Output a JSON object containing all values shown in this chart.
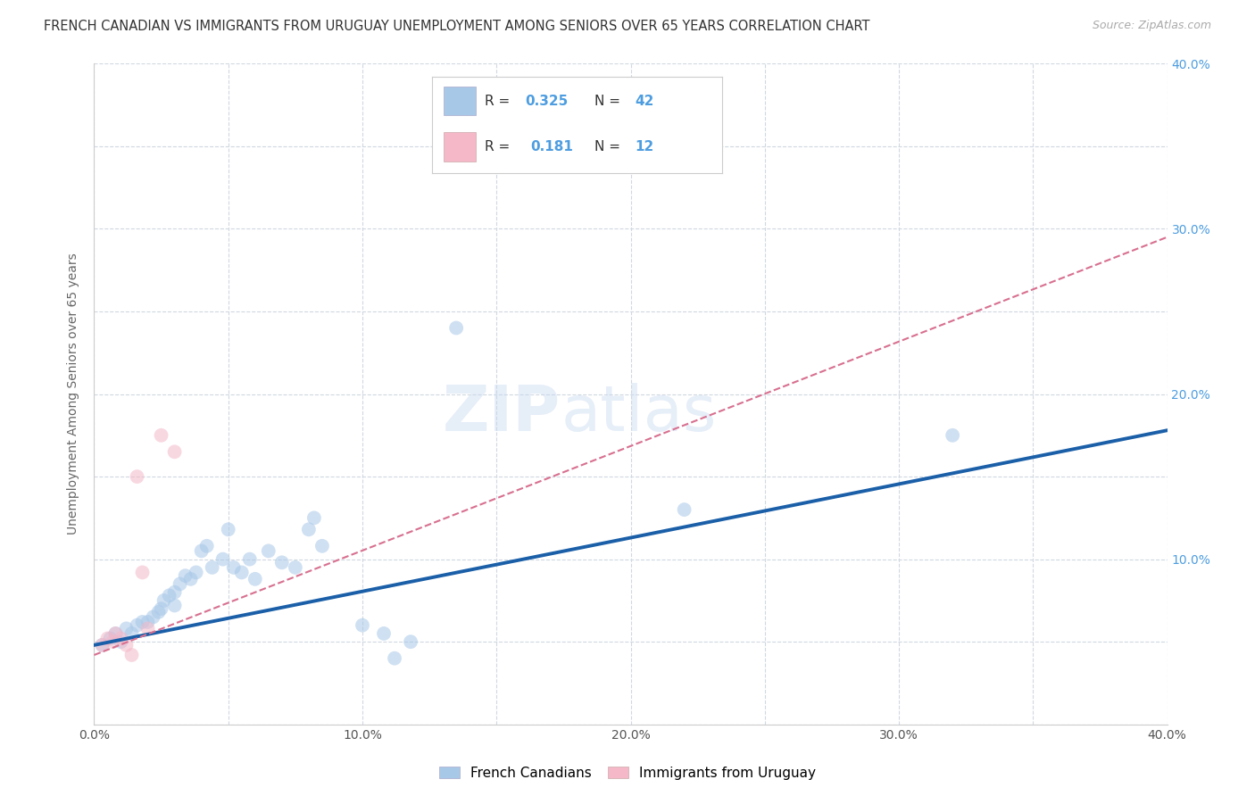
{
  "title": "FRENCH CANADIAN VS IMMIGRANTS FROM URUGUAY UNEMPLOYMENT AMONG SENIORS OVER 65 YEARS CORRELATION CHART",
  "source": "Source: ZipAtlas.com",
  "ylabel": "Unemployment Among Seniors over 65 years",
  "xlim": [
    0.0,
    0.4
  ],
  "ylim": [
    0.0,
    0.4
  ],
  "legend_R1": "0.325",
  "legend_N1": "42",
  "legend_R2": "0.181",
  "legend_N2": "12",
  "blue_color": "#a8c8e8",
  "pink_color": "#f4b8c8",
  "blue_line_color": "#1a5fa8",
  "pink_line_color": "#d87090",
  "blue_scatter": [
    [
      0.003,
      0.048
    ],
    [
      0.006,
      0.052
    ],
    [
      0.008,
      0.055
    ],
    [
      0.01,
      0.05
    ],
    [
      0.012,
      0.058
    ],
    [
      0.014,
      0.055
    ],
    [
      0.016,
      0.06
    ],
    [
      0.018,
      0.062
    ],
    [
      0.02,
      0.062
    ],
    [
      0.022,
      0.065
    ],
    [
      0.024,
      0.068
    ],
    [
      0.025,
      0.07
    ],
    [
      0.026,
      0.075
    ],
    [
      0.028,
      0.078
    ],
    [
      0.03,
      0.072
    ],
    [
      0.03,
      0.08
    ],
    [
      0.032,
      0.085
    ],
    [
      0.034,
      0.09
    ],
    [
      0.036,
      0.088
    ],
    [
      0.038,
      0.092
    ],
    [
      0.04,
      0.105
    ],
    [
      0.042,
      0.108
    ],
    [
      0.044,
      0.095
    ],
    [
      0.048,
      0.1
    ],
    [
      0.05,
      0.118
    ],
    [
      0.052,
      0.095
    ],
    [
      0.055,
      0.092
    ],
    [
      0.058,
      0.1
    ],
    [
      0.06,
      0.088
    ],
    [
      0.065,
      0.105
    ],
    [
      0.07,
      0.098
    ],
    [
      0.075,
      0.095
    ],
    [
      0.08,
      0.118
    ],
    [
      0.082,
      0.125
    ],
    [
      0.085,
      0.108
    ],
    [
      0.1,
      0.06
    ],
    [
      0.108,
      0.055
    ],
    [
      0.112,
      0.04
    ],
    [
      0.118,
      0.05
    ],
    [
      0.135,
      0.24
    ],
    [
      0.22,
      0.13
    ],
    [
      0.32,
      0.175
    ]
  ],
  "pink_scatter": [
    [
      0.003,
      0.048
    ],
    [
      0.005,
      0.052
    ],
    [
      0.007,
      0.05
    ],
    [
      0.008,
      0.055
    ],
    [
      0.01,
      0.052
    ],
    [
      0.012,
      0.048
    ],
    [
      0.014,
      0.042
    ],
    [
      0.016,
      0.15
    ],
    [
      0.018,
      0.092
    ],
    [
      0.02,
      0.058
    ],
    [
      0.025,
      0.175
    ],
    [
      0.03,
      0.165
    ]
  ],
  "blue_trendline_x": [
    0.0,
    0.4
  ],
  "blue_trendline_y": [
    0.048,
    0.178
  ],
  "pink_trendline_x": [
    0.0,
    0.4
  ],
  "pink_trendline_y": [
    0.042,
    0.295
  ],
  "watermark_zip": "ZIP",
  "watermark_atlas": "atlas",
  "bg_color": "#ffffff",
  "grid_color": "#d0d8e0",
  "scatter_size": 130,
  "scatter_alpha": 0.55
}
